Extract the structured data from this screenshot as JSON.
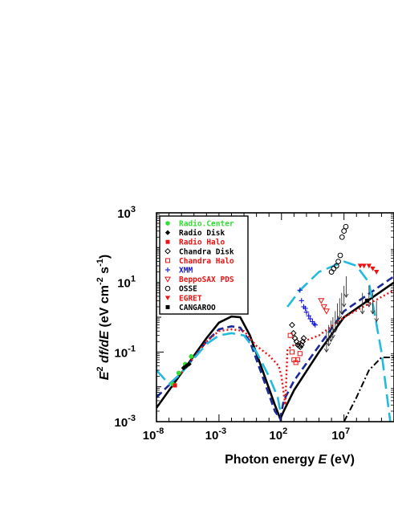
{
  "chart_data": {
    "type": "scatter",
    "title": "",
    "xlabel": "Photon energy E (eV)",
    "ylabel": "E^2 df/dE (eV cm^-2 s^-1)",
    "x_scale": "log",
    "y_scale": "log",
    "xlim": [
      1e-08,
      100000000000.0
    ],
    "ylim": [
      0.001,
      1000
    ],
    "grid": false,
    "legend_position": "top-left",
    "x_ticks": [
      {
        "base": "10",
        "exp": "-8",
        "value": 1e-08
      },
      {
        "base": "10",
        "exp": "-3",
        "value": 0.001
      },
      {
        "base": "10",
        "exp": "2",
        "value": 100
      },
      {
        "base": "10",
        "exp": "7",
        "value": 10000000.0
      }
    ],
    "y_ticks": [
      {
        "base": "10",
        "exp": "-3",
        "value": 0.001
      },
      {
        "base": "10",
        "exp": "-1",
        "value": 0.1
      },
      {
        "base": "10",
        "exp": "1",
        "value": 10
      },
      {
        "base": "10",
        "exp": "3",
        "value": 1000
      }
    ],
    "xlabel_parts": {
      "main": "Photon energy ",
      "var": "E",
      "unit": " (eV)"
    },
    "ylabel_parts": {
      "e": "E",
      "sup2": "2",
      "mid": " df/dE",
      "unit_open": " (eV cm",
      "sup_cm": "-2",
      "s": " s",
      "sup_s": "-1",
      "unit_close": ")"
    },
    "series": [
      {
        "name": "Radio.Center",
        "marker": "circle-filled",
        "color": "#33dd33",
        "points": [
          [
            2e-07,
            0.012
          ],
          [
            6e-07,
            0.025
          ],
          [
            2e-06,
            0.045
          ],
          [
            6e-06,
            0.075
          ]
        ]
      },
      {
        "name": "Radio Disk",
        "marker": "diamond-filled",
        "color": "#000000",
        "points": [
          [
            1.5e-06,
            0.035
          ],
          [
            2.5e-06,
            0.04
          ],
          [
            4e-06,
            0.045
          ]
        ]
      },
      {
        "name": "Radio Halo",
        "marker": "square-filled",
        "color": "#ee1111",
        "points": [
          [
            3e-07,
            0.011
          ]
        ]
      },
      {
        "name": "Chandra Disk",
        "marker": "diamond-open",
        "color": "#000000",
        "points": [
          [
            700,
            0.6
          ],
          [
            900,
            0.35
          ],
          [
            1200,
            0.25
          ],
          [
            1600,
            0.2
          ],
          [
            2000,
            0.16
          ],
          [
            2600,
            0.15
          ],
          [
            3200,
            0.14
          ],
          [
            4000,
            0.16
          ],
          [
            5000,
            0.2
          ],
          [
            6000,
            0.25
          ]
        ]
      },
      {
        "name": "Chandra Halo",
        "marker": "square-open",
        "color": "#ee1111",
        "points": [
          [
            500,
            0.3
          ],
          [
            700,
            0.1
          ],
          [
            1000,
            0.06
          ],
          [
            1400,
            0.05
          ],
          [
            2000,
            0.06
          ],
          [
            3000,
            0.09
          ]
        ]
      },
      {
        "name": "XMM",
        "marker": "plus",
        "color": "#1111dd",
        "points": [
          [
            3000,
            6
          ],
          [
            4000,
            3
          ],
          [
            6000,
            2
          ],
          [
            8000,
            1.8
          ],
          [
            10000,
            1.4
          ],
          [
            15000,
            1.1
          ],
          [
            20000,
            0.9
          ],
          [
            30000,
            0.75
          ],
          [
            40000,
            0.65
          ],
          [
            50000,
            0.6
          ]
        ]
      },
      {
        "name": "BeppoSAX PDS",
        "marker": "triangle-down-open",
        "color": "#ee1111",
        "points": [
          [
            150000,
            3
          ],
          [
            250000,
            2
          ],
          [
            400000,
            1.5
          ]
        ]
      },
      {
        "name": "OSSE",
        "marker": "circle-open",
        "color": "#000000",
        "points": [
          [
            1000000,
            20
          ],
          [
            1500000,
            25
          ],
          [
            2500000,
            30
          ],
          [
            3500000,
            40
          ],
          [
            5000000,
            60
          ],
          [
            7000000,
            200
          ],
          [
            10000000,
            300
          ],
          [
            14000000,
            400
          ]
        ]
      },
      {
        "name": "EGRET",
        "marker": "triangle-down-filled",
        "color": "#ee1111",
        "points": [
          [
            200000000,
            30
          ],
          [
            400000000,
            30
          ],
          [
            1000000000,
            30
          ],
          [
            2000000000,
            25
          ],
          [
            4000000000,
            20
          ]
        ]
      },
      {
        "name": "CANGAROO",
        "marker": "square-filled",
        "color": "#000000",
        "points": [
          [
            700000000,
            3
          ]
        ]
      }
    ],
    "model_curves": [
      {
        "style": "solid",
        "color": "#000000",
        "points": [
          [
            1e-08,
            0.0025
          ],
          [
            1e-06,
            0.025
          ],
          [
            0.0001,
            0.25
          ],
          [
            0.001,
            0.7
          ],
          [
            0.01,
            1.05
          ],
          [
            0.05,
            1
          ],
          [
            0.3,
            0.3
          ],
          [
            3,
            0.03
          ],
          [
            30,
            0.003
          ],
          [
            80,
            0.0012
          ],
          [
            150,
            0.002
          ],
          [
            1000,
            0.008
          ],
          [
            100000,
            0.1
          ],
          [
            10000000,
            1
          ],
          [
            100000000000,
            10
          ]
        ]
      },
      {
        "style": "dash",
        "color": "#1a2a99",
        "points": [
          [
            1e-08,
            0.005
          ],
          [
            1e-06,
            0.025
          ],
          [
            0.0001,
            0.2
          ],
          [
            0.001,
            0.45
          ],
          [
            0.01,
            0.55
          ],
          [
            0.05,
            0.5
          ],
          [
            0.3,
            0.2
          ],
          [
            3,
            0.02
          ],
          [
            30,
            0.002
          ],
          [
            80,
            0.0012
          ],
          [
            150,
            0.004
          ],
          [
            1000,
            0.015
          ],
          [
            100000,
            0.15
          ],
          [
            10000000,
            1.5
          ],
          [
            100000000000,
            15
          ]
        ]
      },
      {
        "style": "dot",
        "color": "#ee1111",
        "points": [
          [
            1e-06,
            0.025
          ],
          [
            0.0001,
            0.2
          ],
          [
            0.001,
            0.4
          ],
          [
            0.01,
            0.45
          ],
          [
            0.1,
            0.4
          ],
          [
            1,
            0.15
          ],
          [
            10,
            0.08
          ],
          [
            60,
            0.04
          ],
          [
            100,
            0.02
          ],
          [
            200,
            0.003
          ],
          [
            300,
            0.12
          ],
          [
            1000,
            0.16
          ],
          [
            100000,
            0.3
          ],
          [
            10000000,
            1
          ],
          [
            100000000000,
            6
          ]
        ]
      },
      {
        "style": "longdash",
        "color": "#22bbdd",
        "points": [
          [
            1e-08,
            0.03
          ],
          [
            1e-07,
            0.012
          ],
          [
            1e-06,
            0.025
          ],
          [
            0.0001,
            0.17
          ],
          [
            0.001,
            0.3
          ],
          [
            0.01,
            0.35
          ],
          [
            0.1,
            0.3
          ],
          [
            1,
            0.1
          ],
          [
            10,
            0.02
          ],
          [
            50,
            0.005
          ],
          [
            80,
            0.002
          ]
        ]
      },
      {
        "style": "longdash",
        "color": "#22bbdd",
        "points": [
          [
            300,
            2
          ],
          [
            3000,
            6
          ],
          [
            100000,
            20
          ],
          [
            10000000,
            40
          ],
          [
            100000000,
            30
          ],
          [
            1000000000,
            10
          ],
          [
            10000000000,
            0.1
          ],
          [
            50000000000,
            0.001
          ]
        ]
      },
      {
        "style": "dashdot",
        "color": "#000000",
        "points": [
          [
            10000000,
            0.001
          ],
          [
            100000000,
            0.005
          ],
          [
            1000000000,
            0.03
          ],
          [
            10000000000,
            0.07
          ],
          [
            100000000000,
            0.07
          ]
        ]
      }
    ],
    "upper_limits": [
      [
        400000,
        0.4
      ],
      [
        600000,
        0.6
      ],
      [
        900000,
        0.8
      ],
      [
        1300000,
        1.0
      ],
      [
        2000000,
        1.5
      ],
      [
        3000000,
        2.5
      ],
      [
        4500000,
        3.5
      ],
      [
        6500000,
        5
      ],
      [
        10000000,
        8
      ],
      [
        15000000,
        15
      ],
      [
        300000000,
        5
      ],
      [
        1000000000,
        8
      ],
      [
        2000000000,
        5
      ],
      [
        4000000000,
        3
      ]
    ]
  },
  "colors": {
    "radio_center": "#33dd33",
    "red": "#ee1111",
    "xmm_blue": "#1111dd",
    "black": "#000000",
    "cyan_model": "#22bbdd",
    "navy_model": "#1a2a99"
  }
}
